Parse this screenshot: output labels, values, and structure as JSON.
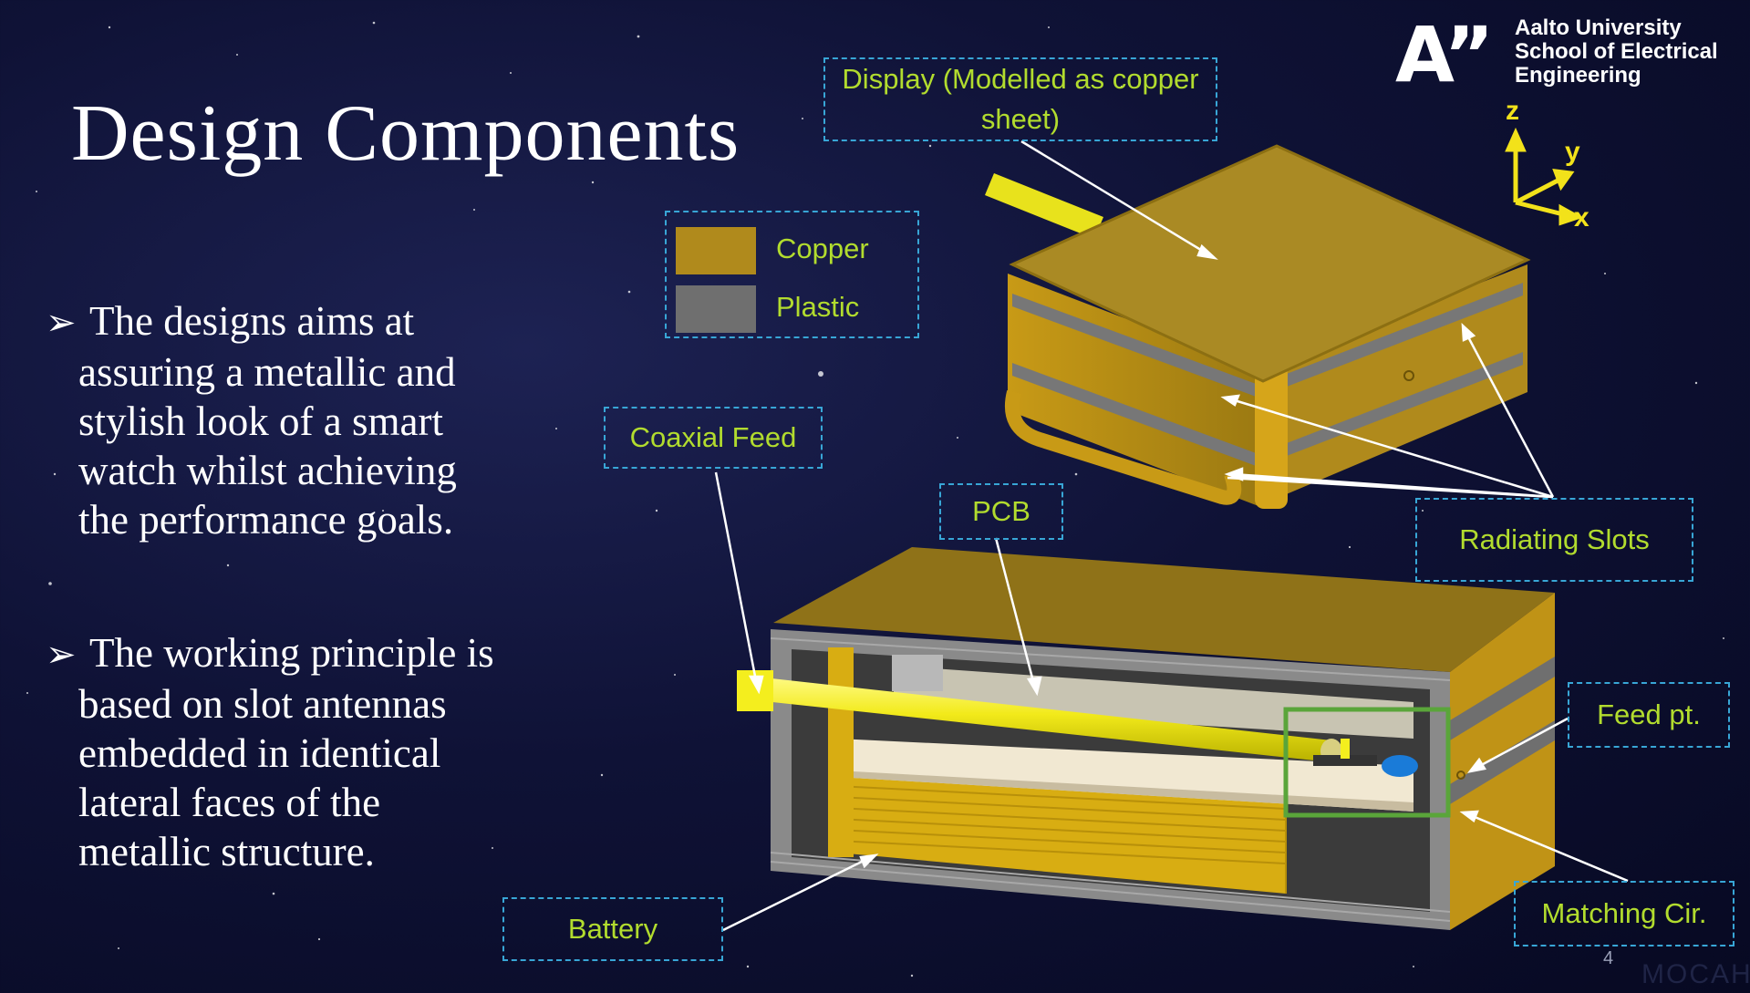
{
  "slide": {
    "title": "Design Components",
    "bullets": [
      {
        "first": "The designs aims at",
        "rest": [
          "assuring a metallic and",
          "stylish look of a smart",
          "watch whilst achieving",
          "the performance goals."
        ]
      },
      {
        "first": "The working principle is",
        "rest": [
          "based on slot antennas",
          "embedded in identical",
          "lateral faces of the",
          "metallic structure."
        ]
      }
    ],
    "bullet_glyph": "➢",
    "page_number": "4",
    "watermark": "MOCAH"
  },
  "logo": {
    "mark": "A”",
    "text": "Aalto University\nSchool of Electrical\nEngineering"
  },
  "axes": {
    "z": "z",
    "y": "y",
    "x": "x"
  },
  "legend": {
    "items": [
      {
        "label": "Copper",
        "color": "#b08a1c"
      },
      {
        "label": "Plastic",
        "color": "#6f6f6f"
      }
    ]
  },
  "callouts": {
    "display": "Display (Modelled as copper sheet)",
    "coaxial_feed": "Coaxial Feed",
    "pcb": "PCB",
    "radiating_slots": "Radiating Slots",
    "feed_pt": "Feed pt.",
    "matching_cir": "Matching Cir.",
    "battery": "Battery"
  },
  "colors": {
    "callout_text": "#b2dc2e",
    "callout_border": "#38a6d6",
    "copper": "#b08a1c",
    "plastic": "#6f6f6f",
    "coax": "#f4ee1e"
  },
  "icons": [
    "bullet-arrow-icon",
    "axes-icon",
    "aalto-logo"
  ]
}
